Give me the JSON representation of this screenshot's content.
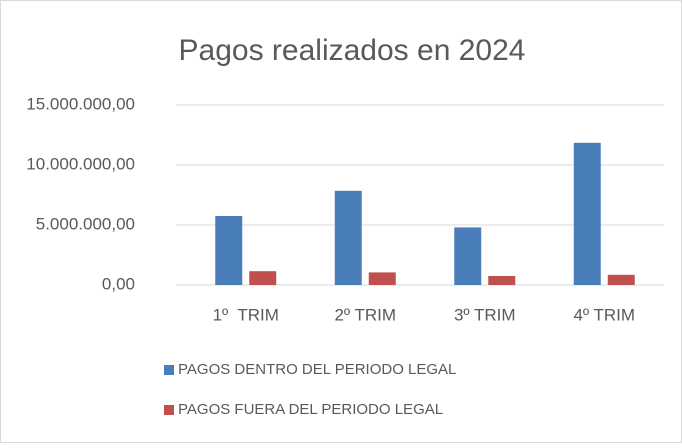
{
  "chart_data": {
    "type": "bar",
    "title": "Pagos realizados en 2024",
    "categories": [
      "1º  TRIM",
      "2º TRIM",
      "3º TRIM",
      "4º TRIM"
    ],
    "series": [
      {
        "name": "PAGOS DENTRO DEL PERIODO LEGAL",
        "color": "#4a7ebb",
        "values": [
          5750000,
          7850000,
          4800000,
          11850000
        ]
      },
      {
        "name": "PAGOS FUERA DEL PERIODO LEGAL",
        "color": "#c0504d",
        "values": [
          1150000,
          1050000,
          750000,
          850000
        ]
      }
    ],
    "ylim": [
      0,
      15000000
    ],
    "yticks": [
      {
        "value": 0,
        "label": "0,00"
      },
      {
        "value": 5000000,
        "label": "5.000.000,00"
      },
      {
        "value": 10000000,
        "label": "10.000.000,00"
      },
      {
        "value": 15000000,
        "label": "15.000.000,00"
      }
    ],
    "grid": true,
    "legend": "bottom"
  }
}
